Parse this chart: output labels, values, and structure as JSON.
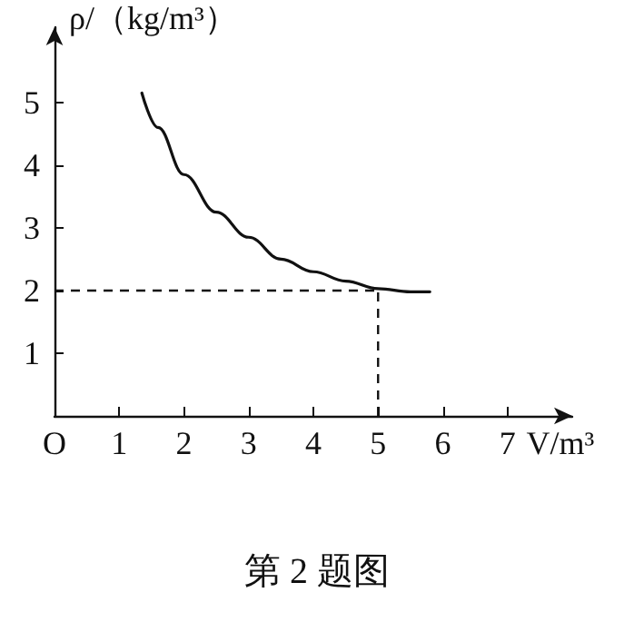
{
  "chart_data": {
    "type": "line",
    "title": "第 2 题图",
    "xlabel": "V/m³",
    "ylabel": "ρ/（kg/m³）",
    "x": [
      1.35,
      1.6,
      2,
      2.5,
      3,
      3.5,
      4,
      4.5,
      5,
      5.5,
      5.8
    ],
    "series": [
      {
        "color": "#111111",
        "values": [
          5.15,
          4.6,
          3.85,
          3.25,
          2.85,
          2.5,
          2.3,
          2.15,
          2.03,
          1.98,
          1.98
        ]
      }
    ],
    "xlim": [
      0,
      8
    ],
    "xticks": [
      {
        "value": 0,
        "label": "O"
      },
      1,
      2,
      3,
      4,
      5,
      6,
      7
    ],
    "ylim": [
      0,
      6.2
    ],
    "yticks": [
      1,
      2,
      3,
      4,
      5
    ],
    "ref_lines": [
      {
        "axis": "y",
        "value": 2,
        "color": "#111111",
        "line_style": "dashed"
      },
      {
        "axis": "x",
        "value": 5,
        "color": "#111111",
        "line_style": "dashed"
      }
    ],
    "grid": false,
    "marker": "none",
    "line_style": "solid"
  }
}
